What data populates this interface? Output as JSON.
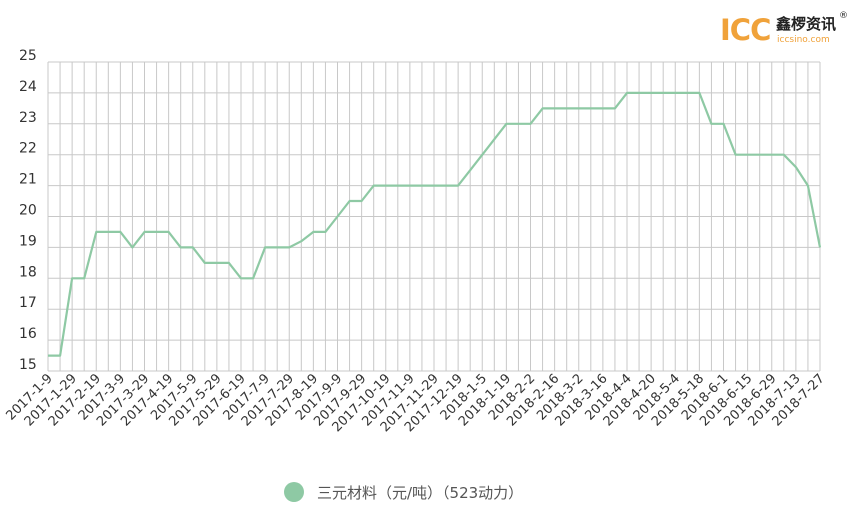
{
  "logo": {
    "brand": "ICC",
    "name_cn": "鑫椤资讯",
    "registered": "®",
    "url": "iccsino.com"
  },
  "colors": {
    "series": "#8ec9a4",
    "grid": "#c8c8c8",
    "axis_text": "#333333",
    "logo_orange": "#f0a23a"
  },
  "chart_data": {
    "type": "line",
    "title": "",
    "xlabel": "",
    "ylabel": "",
    "ylim": [
      15,
      25
    ],
    "yticks": [
      15,
      16,
      17,
      18,
      19,
      20,
      21,
      22,
      23,
      24,
      25
    ],
    "grid": true,
    "legend_position": "bottom",
    "x": [
      "2017-1-9",
      "2017-1-19",
      "2017-1-29",
      "2017-2-9",
      "2017-2-19",
      "2017-2-29",
      "2017-3-9",
      "2017-3-19",
      "2017-3-29",
      "2017-4-9",
      "2017-4-19",
      "2017-4-29",
      "2017-5-9",
      "2017-5-19",
      "2017-5-29",
      "2017-6-9",
      "2017-6-19",
      "2017-6-29",
      "2017-7-9",
      "2017-7-19",
      "2017-7-29",
      "2017-8-9",
      "2017-8-19",
      "2017-8-29",
      "2017-9-9",
      "2017-9-19",
      "2017-9-29",
      "2017-10-9",
      "2017-10-19",
      "2017-10-29",
      "2017-11-9",
      "2017-11-19",
      "2017-11-29",
      "2017-12-9",
      "2017-12-19",
      "2017-12-29",
      "2018-1-5",
      "2018-1-12",
      "2018-1-19",
      "2018-1-26",
      "2018-2-2",
      "2018-2-9",
      "2018-2-16",
      "2018-2-23",
      "2018-3-2",
      "2018-3-9",
      "2018-3-16",
      "2018-3-23",
      "2018-4-4",
      "2018-4-13",
      "2018-4-20",
      "2018-4-27",
      "2018-5-4",
      "2018-5-11",
      "2018-5-18",
      "2018-5-25",
      "2018-6-1",
      "2018-6-8",
      "2018-6-15",
      "2018-6-22",
      "2018-6-29",
      "2018-7-6",
      "2018-7-13",
      "2018-7-20",
      "2018-7-27"
    ],
    "tick_labels": [
      "2017-1-9",
      "2017-1-29",
      "2017-2-19",
      "2017-3-9",
      "2017-3-29",
      "2017-4-19",
      "2017-5-9",
      "2017-5-29",
      "2017-6-19",
      "2017-7-9",
      "2017-7-29",
      "2017-8-19",
      "2017-9-9",
      "2017-9-29",
      "2017-10-19",
      "2017-11-9",
      "2017-11-29",
      "2017-12-19",
      "2018-1-5",
      "2018-1-19",
      "2018-2-2",
      "2018-2-16",
      "2018-3-2",
      "2018-3-16",
      "2018-4-4",
      "2018-4-20",
      "2018-5-4",
      "2018-5-18",
      "2018-6-1",
      "2018-6-15",
      "2018-6-29",
      "2018-7-13",
      "2018-7-27"
    ],
    "series": [
      {
        "name": "三元材料（元/吨）（523动力）",
        "values": [
          15.5,
          15.5,
          18,
          18,
          19.5,
          19.5,
          19.5,
          19,
          19.5,
          19.5,
          19.5,
          19,
          19,
          18.5,
          18.5,
          18.5,
          18,
          18,
          19,
          19,
          19,
          19.2,
          19.5,
          19.5,
          20,
          20.5,
          20.5,
          21,
          21,
          21,
          21,
          21,
          21,
          21,
          21,
          21.5,
          22,
          22.5,
          23,
          23,
          23,
          23.5,
          23.5,
          23.5,
          23.5,
          23.5,
          23.5,
          23.5,
          24,
          24,
          24,
          24,
          24,
          24,
          24,
          23,
          23,
          22,
          22,
          22,
          22,
          22,
          21.6,
          21,
          19
        ]
      }
    ]
  }
}
